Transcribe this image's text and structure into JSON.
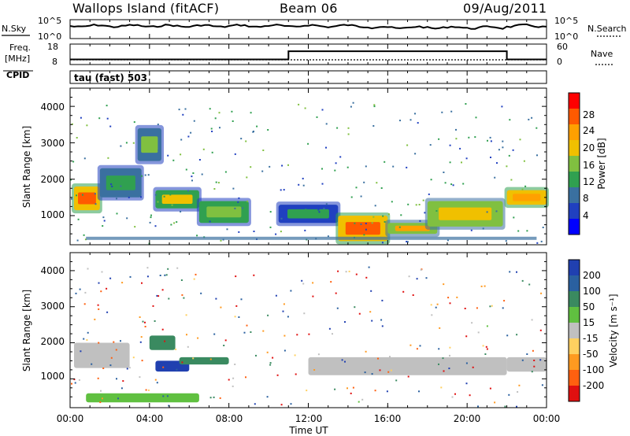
{
  "header": {
    "site": "Wallops Island (fitACF)",
    "beam": "Beam 06",
    "date": "09/Aug/2011"
  },
  "noise_panel": {
    "left_label": "N.Sky",
    "right_label": "N.Search",
    "left_ticks": [
      "10^5",
      "10^0"
    ],
    "right_ticks": [
      "10^5",
      "10^0"
    ]
  },
  "freq_panel": {
    "left_label_line1": "Freq.",
    "left_label_line2": "[MHz]",
    "right_label": "Nave",
    "left_ticks": [
      "18",
      "8"
    ],
    "right_ticks": [
      "60",
      "0"
    ]
  },
  "cpid": {
    "label": "CPID",
    "mode": "tau (fast) 503"
  },
  "power_panel": {
    "ylabel": "Slant Range [km]",
    "yticks": [
      "4000",
      "3000",
      "2000",
      "1000"
    ],
    "colorbar_title": "Power [dB]",
    "colorbar_ticks": [
      "28",
      "24",
      "20",
      "16",
      "12",
      "8",
      "4"
    ],
    "colorbar_colors": [
      "#ff0000",
      "#ff5a00",
      "#ffa000",
      "#f0c000",
      "#80c040",
      "#30a050",
      "#3a70a0",
      "#2040c0",
      "#0000ff"
    ]
  },
  "velocity_panel": {
    "ylabel": "Slant Range [km]",
    "yticks": [
      "4000",
      "3000",
      "2000",
      "1000"
    ],
    "colorbar_title": "Velocity [m s⁻¹]",
    "colorbar_ticks": [
      "200",
      "100",
      "50",
      "15",
      "-15",
      "-50",
      "-100",
      "-200"
    ],
    "colorbar_colors": [
      "#2040b0",
      "#2a60a0",
      "#3a8a60",
      "#60c040",
      "#c0c0c0",
      "#ffd060",
      "#ff9a20",
      "#ff6010",
      "#e01010"
    ],
    "ground_scatter_color": "#c0c0c0"
  },
  "time_axis": {
    "xlabel": "Time UT",
    "ticks": [
      "00:00",
      "04:00",
      "08:00",
      "12:00",
      "16:00",
      "20:00",
      "00:00"
    ]
  },
  "chart_data": {
    "type": "heatmap",
    "title": "Wallops Island (fitACF) Beam 06 09/Aug/2011",
    "xlabel": "Time UT",
    "ylabel": "Slant Range [km]",
    "x_range_hours": [
      0,
      24
    ],
    "y_range_km": [
      200,
      4500
    ],
    "frequency_steps": [
      {
        "start_h": 0.0,
        "end_h": 11.0,
        "mhz": 10.5
      },
      {
        "start_h": 11.0,
        "end_h": 22.0,
        "mhz": 14.5
      },
      {
        "start_h": 22.0,
        "end_h": 24.0,
        "mhz": 10.5
      }
    ],
    "power_regions": [
      {
        "t0": 0.2,
        "t1": 1.5,
        "r0": 1150,
        "r1": 1800,
        "db": 28
      },
      {
        "t0": 1.5,
        "t1": 3.6,
        "r0": 1500,
        "r1": 2300,
        "db": 14
      },
      {
        "t0": 3.4,
        "t1": 4.6,
        "r0": 2500,
        "r1": 3400,
        "db": 16
      },
      {
        "t0": 4.3,
        "t1": 6.5,
        "r0": 1200,
        "r1": 1700,
        "db": 20
      },
      {
        "t0": 6.5,
        "t1": 9.0,
        "r0": 800,
        "r1": 1400,
        "db": 18
      },
      {
        "t0": 10.5,
        "t1": 13.5,
        "r0": 800,
        "r1": 1300,
        "db": 12
      },
      {
        "t0": 13.5,
        "t1": 16.0,
        "r0": 300,
        "r1": 1000,
        "db": 28
      },
      {
        "t0": 16.0,
        "t1": 18.5,
        "r0": 500,
        "r1": 800,
        "db": 24
      },
      {
        "t0": 18.0,
        "t1": 21.8,
        "r0": 700,
        "r1": 1400,
        "db": 22
      },
      {
        "t0": 22.0,
        "t1": 24.0,
        "r0": 1300,
        "r1": 1700,
        "db": 26
      }
    ],
    "velocity_regions": [
      {
        "t0": 0.2,
        "t1": 3.0,
        "r0": 1300,
        "r1": 2000,
        "ms": 0
      },
      {
        "t0": 4.0,
        "t1": 5.3,
        "r0": 1800,
        "r1": 2200,
        "ms": 60
      },
      {
        "t0": 4.3,
        "t1": 6.0,
        "r0": 1200,
        "r1": 1500,
        "ms": 150
      },
      {
        "t0": 5.5,
        "t1": 8.0,
        "r0": 1400,
        "r1": 1600,
        "ms": 30
      },
      {
        "t0": 0.8,
        "t1": 6.5,
        "r0": 350,
        "r1": 600,
        "ms": 20
      },
      {
        "t0": 12.0,
        "t1": 22.0,
        "r0": 1100,
        "r1": 1600,
        "ms": 0
      },
      {
        "t0": 22.0,
        "t1": 24.0,
        "r0": 1200,
        "r1": 1600,
        "ms": 0
      }
    ]
  }
}
